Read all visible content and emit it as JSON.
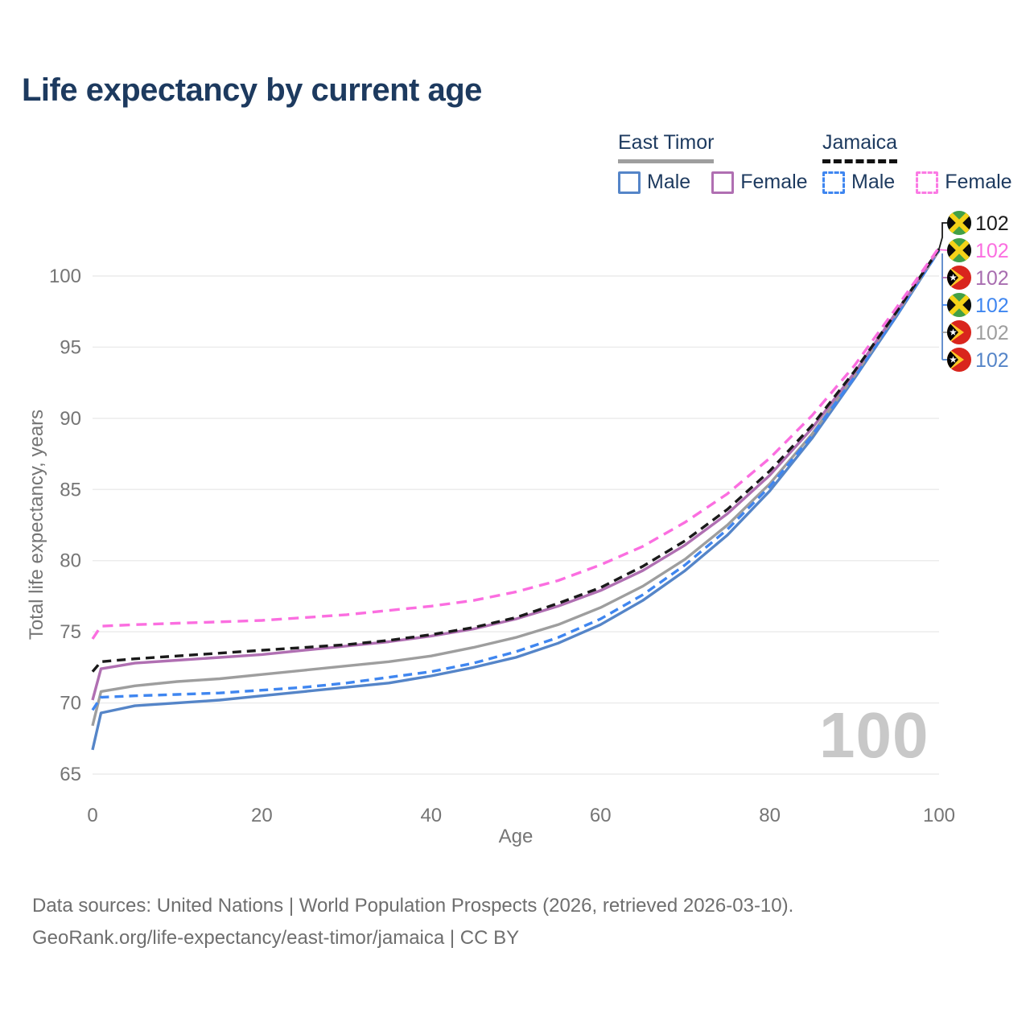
{
  "title": "Life expectancy by current age",
  "watermark": "100",
  "legend": {
    "groups": [
      {
        "id": "east-timor",
        "label": "East Timor",
        "underline_style": "solid",
        "underline_color": "#9e9e9e",
        "items": [
          {
            "label": "Male",
            "color": "#5585c8",
            "dashed": false
          },
          {
            "label": "Female",
            "color": "#b06fb2",
            "dashed": false
          }
        ]
      },
      {
        "id": "jamaica",
        "label": "Jamaica",
        "underline_style": "dashed",
        "underline_color": "#111111",
        "items": [
          {
            "label": "Male",
            "color": "#3f86f0",
            "dashed": true
          },
          {
            "label": "Female",
            "color": "#fb7ae4",
            "dashed": true
          }
        ]
      }
    ]
  },
  "footer": {
    "line1": "Data sources: United Nations | World Population Prospects (2026, retrieved 2026-03-10).",
    "line2": "GeoRank.org/life-expectancy/east-timor/jamaica | CC BY"
  },
  "chart_data": {
    "type": "line",
    "title": "Life expectancy by current age",
    "xlabel": "Age",
    "ylabel": "Total life expectancy, years",
    "xlim": [
      0,
      100
    ],
    "ylim": [
      65,
      102.5
    ],
    "x_ticks": [
      0,
      20,
      40,
      60,
      80,
      100
    ],
    "y_ticks": [
      65,
      70,
      75,
      80,
      85,
      90,
      95,
      100
    ],
    "grid": "horizontal",
    "legend_position": "top-right",
    "x": [
      0,
      1,
      5,
      10,
      15,
      20,
      25,
      30,
      35,
      40,
      45,
      50,
      55,
      60,
      65,
      70,
      75,
      80,
      85,
      90,
      95,
      100
    ],
    "series": [
      {
        "id": "jamaica-total",
        "name": "Jamaica — Total",
        "flag": "jamaica",
        "color": "#1a1a1a",
        "label_color": "#1a1a1a",
        "dash": "11 7",
        "end_value": "102",
        "values": [
          72.2,
          72.9,
          73.1,
          73.3,
          73.5,
          73.7,
          73.9,
          74.1,
          74.4,
          74.8,
          75.3,
          76.0,
          77.0,
          78.1,
          79.6,
          81.4,
          83.6,
          86.3,
          89.5,
          93.3,
          97.5,
          101.9
        ]
      },
      {
        "id": "jamaica-female",
        "name": "Jamaica — Female",
        "flag": "jamaica",
        "color": "#fb6ee0",
        "label_color": "#fb6ee0",
        "dash": "13 8",
        "end_value": "102",
        "values": [
          74.5,
          75.4,
          75.5,
          75.6,
          75.7,
          75.8,
          76.0,
          76.2,
          76.5,
          76.8,
          77.2,
          77.8,
          78.6,
          79.7,
          81.0,
          82.7,
          84.7,
          87.2,
          90.2,
          93.7,
          97.8,
          102.0
        ]
      },
      {
        "id": "east-timor-female",
        "name": "East Timor — Female",
        "flag": "east-timor",
        "color": "#b06fb2",
        "label_color": "#a86db0",
        "dash": null,
        "end_value": "102",
        "values": [
          70.2,
          72.4,
          72.8,
          73.0,
          73.2,
          73.4,
          73.7,
          74.0,
          74.3,
          74.7,
          75.2,
          75.9,
          76.8,
          77.9,
          79.3,
          81.1,
          83.3,
          86.0,
          89.3,
          93.2,
          97.5,
          101.9
        ]
      },
      {
        "id": "jamaica-male",
        "name": "Jamaica — Male",
        "flag": "jamaica",
        "color": "#3f86f0",
        "label_color": "#3f86f0",
        "dash": "11 7",
        "end_value": "102",
        "values": [
          69.5,
          70.4,
          70.5,
          70.6,
          70.7,
          70.9,
          71.1,
          71.4,
          71.8,
          72.2,
          72.8,
          73.6,
          74.6,
          75.9,
          77.6,
          79.7,
          82.2,
          85.2,
          88.8,
          92.9,
          97.3,
          101.8
        ]
      },
      {
        "id": "east-timor-total",
        "name": "East Timor — Total",
        "flag": "east-timor",
        "color": "#9e9e9e",
        "label_color": "#9e9e9e",
        "dash": null,
        "end_value": "102",
        "values": [
          68.4,
          70.8,
          71.2,
          71.5,
          71.7,
          72.0,
          72.3,
          72.6,
          72.9,
          73.3,
          73.9,
          74.6,
          75.5,
          76.7,
          78.2,
          80.1,
          82.5,
          85.4,
          88.9,
          93.0,
          97.4,
          101.8
        ]
      },
      {
        "id": "east-timor-male",
        "name": "East Timor — Male",
        "flag": "east-timor",
        "color": "#5585c8",
        "label_color": "#5585c8",
        "dash": null,
        "end_value": "102",
        "values": [
          66.7,
          69.3,
          69.8,
          70.0,
          70.2,
          70.5,
          70.8,
          71.1,
          71.4,
          71.9,
          72.5,
          73.2,
          74.2,
          75.5,
          77.2,
          79.3,
          81.8,
          84.9,
          88.6,
          92.8,
          97.2,
          101.8
        ]
      }
    ]
  }
}
